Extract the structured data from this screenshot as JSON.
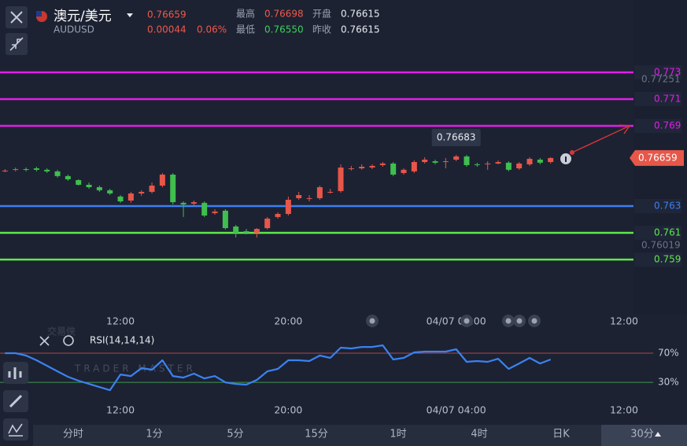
{
  "header": {
    "pair_name": "澳元/美元",
    "symbol": "AUDUSD",
    "price": "0.76659",
    "change": "0.00044",
    "change_pct": "0.06%",
    "high_label": "最高",
    "high": "0.76698",
    "low_label": "最低",
    "low": "0.76550",
    "open_label": "开盘",
    "open": "0.76615",
    "prev_close_label": "昨收",
    "prev_close": "0.76615"
  },
  "watermark": {
    "title": "交易侠",
    "subtitle": "TRADER MASTER"
  },
  "chart_data": [
    {
      "type": "candlestick",
      "xlim": [
        -0.48,
        59.9
      ],
      "ylim": [
        0.75488,
        0.77782
      ],
      "xticks": [
        {
          "value": 11,
          "label": "12:00"
        },
        {
          "value": 27,
          "label": "20:00"
        },
        {
          "value": 43,
          "label": "04/07 04:00"
        },
        {
          "value": 59,
          "label": "12:00"
        }
      ],
      "open": [
        0.76565,
        0.76571,
        0.76576,
        0.76582,
        0.76571,
        0.76559,
        0.76524,
        0.76494,
        0.76459,
        0.76441,
        0.76418,
        0.76371,
        0.76341,
        0.76394,
        0.76406,
        0.76453,
        0.76535,
        0.76324,
        0.76318,
        0.76324,
        0.76247,
        0.76265,
        0.76147,
        0.76112,
        0.761,
        0.76135,
        0.76218,
        0.76241,
        0.76359,
        0.76359,
        0.76359,
        0.76406,
        0.76412,
        0.76582,
        0.76582,
        0.76588,
        0.76606,
        0.76618,
        0.76547,
        0.76559,
        0.76629,
        0.76635,
        0.76629,
        0.76647,
        0.76671,
        0.76612,
        0.76612,
        0.76618,
        0.76624,
        0.76582,
        0.76612,
        0.76647,
        0.76629
      ],
      "high": [
        0.76576,
        0.76588,
        0.76588,
        0.76594,
        0.76582,
        0.76571,
        0.76535,
        0.765,
        0.76476,
        0.76453,
        0.76429,
        0.76382,
        0.76406,
        0.76418,
        0.76476,
        0.76547,
        0.76547,
        0.76335,
        0.76341,
        0.76335,
        0.76276,
        0.76276,
        0.76159,
        0.76129,
        0.76135,
        0.76218,
        0.76253,
        0.76371,
        0.76406,
        0.76382,
        0.76453,
        0.76429,
        0.76612,
        0.766,
        0.76612,
        0.76612,
        0.76629,
        0.76629,
        0.76582,
        0.76641,
        0.76665,
        0.76647,
        0.76659,
        0.76683,
        0.76682,
        0.76624,
        0.76635,
        0.76641,
        0.76635,
        0.76629,
        0.76665,
        0.76659,
        0.76665
      ],
      "low": [
        0.76553,
        0.76559,
        0.76559,
        0.76559,
        0.76547,
        0.76512,
        0.76488,
        0.76453,
        0.76429,
        0.76406,
        0.76382,
        0.76324,
        0.76324,
        0.76376,
        0.76394,
        0.76441,
        0.76312,
        0.76218,
        0.763,
        0.76218,
        0.76235,
        0.76124,
        0.76065,
        0.76088,
        0.76065,
        0.76124,
        0.76206,
        0.76229,
        0.76347,
        0.76335,
        0.76347,
        0.76394,
        0.764,
        0.76565,
        0.76571,
        0.76576,
        0.76594,
        0.76524,
        0.76535,
        0.76547,
        0.76618,
        0.76612,
        0.76582,
        0.76635,
        0.76594,
        0.76594,
        0.76571,
        0.76612,
        0.76559,
        0.76571,
        0.766,
        0.76612,
        0.76618
      ],
      "close": [
        0.76565,
        0.76576,
        0.76571,
        0.76571,
        0.76559,
        0.76524,
        0.765,
        0.76459,
        0.76441,
        0.76418,
        0.76394,
        0.76335,
        0.76394,
        0.76406,
        0.76453,
        0.76535,
        0.76329,
        0.76312,
        0.76329,
        0.76229,
        0.76259,
        0.76135,
        0.761,
        0.761,
        0.76129,
        0.76206,
        0.76241,
        0.76347,
        0.76382,
        0.76359,
        0.76441,
        0.76406,
        0.76588,
        0.76582,
        0.76594,
        0.766,
        0.76618,
        0.76535,
        0.76571,
        0.76629,
        0.76647,
        0.76624,
        0.76635,
        0.76671,
        0.76606,
        0.76606,
        0.76618,
        0.76629,
        0.76571,
        0.76618,
        0.76653,
        0.76624,
        0.76659
      ],
      "up_color": "#e8564a",
      "down_color": "#3fbf4e",
      "levels": [
        {
          "value": 0.773,
          "color": "#e21ee6"
        },
        {
          "value": 0.771,
          "color": "#e21ee6"
        },
        {
          "value": 0.769,
          "color": "#e21ee6"
        },
        {
          "value": 0.763,
          "color": "#3d7ff0"
        },
        {
          "value": 0.761,
          "color": "#5ee84a"
        },
        {
          "value": 0.759,
          "color": "#5ee84a"
        }
      ],
      "axis_labels": [
        0.77251,
        0.76019
      ]
    },
    {
      "type": "line",
      "title": "RSI(14,14,14)",
      "xlim": [
        -0.48,
        59.9
      ],
      "ylim": [
        2,
        90
      ],
      "yticks": [
        {
          "value": 70,
          "label": "70%"
        },
        {
          "value": 30,
          "label": "30%"
        }
      ],
      "ytick_colors": [
        "#b0474a",
        "#3f9a4e"
      ],
      "color": "#3b82f0",
      "values": [
        70,
        70,
        66.8,
        60.3,
        52.7,
        45.1,
        37.6,
        32.2,
        27.8,
        23.5,
        19.2,
        40.8,
        38.6,
        49.5,
        47.4,
        60.3,
        38.6,
        36.5,
        41.9,
        35.4,
        38.6,
        30,
        27.8,
        26.8,
        33.3,
        45.1,
        48.4,
        60.3,
        60.3,
        59.2,
        66.8,
        63.5,
        77.6,
        76.5,
        78.6,
        78.6,
        80.8,
        61.4,
        63.5,
        71.1,
        72.2,
        72.2,
        72.2,
        75.4,
        58.1,
        59.2,
        58.1,
        62.4,
        48.4,
        55.9,
        63.5,
        55.9,
        61.4
      ]
    }
  ],
  "timeframes": {
    "items": [
      "分时",
      "1分",
      "5分",
      "15分",
      "1时",
      "4时",
      "日K",
      "30分"
    ],
    "active": 7
  }
}
